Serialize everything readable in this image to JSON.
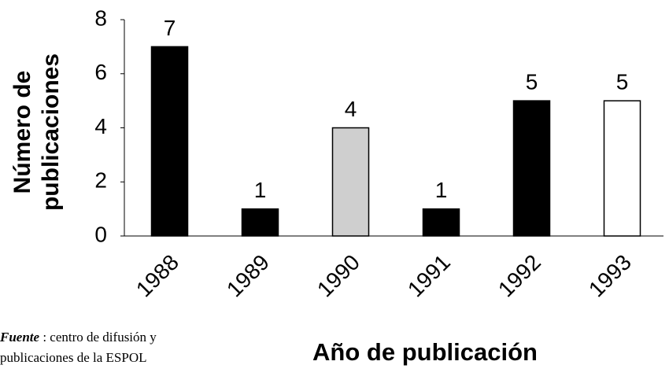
{
  "chart_data": {
    "type": "bar",
    "categories": [
      "1988",
      "1989",
      "1990",
      "1991",
      "1992",
      "1993"
    ],
    "values": [
      7,
      1,
      4,
      1,
      5,
      5
    ],
    "colors": [
      "#000000",
      "#000000",
      "#cfcfcf",
      "#000000",
      "#000000",
      "#ffffff"
    ],
    "ylim": [
      0,
      8
    ],
    "yticks": [
      0,
      2,
      4,
      6,
      8
    ],
    "grid": false,
    "ylabel": [
      "Número de",
      "publicaciones"
    ],
    "xlabel": "Año de publicación",
    "source": {
      "label": "Fuente",
      "lines": [
        " : centro de difusión y",
        "publicaciones de la ESPOL"
      ]
    }
  }
}
